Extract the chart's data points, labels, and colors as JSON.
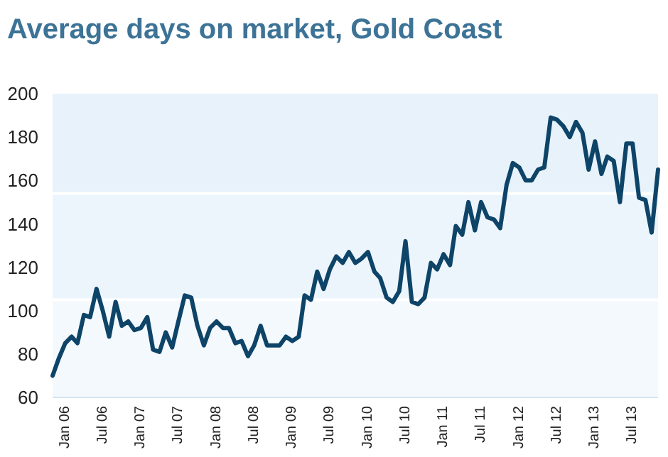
{
  "chart_data": {
    "type": "line",
    "title": "Average days on market, Gold Coast",
    "x": [
      "2005-11",
      "2005-12",
      "2006-01",
      "2006-02",
      "2006-03",
      "2006-04",
      "2006-05",
      "2006-06",
      "2006-07",
      "2006-08",
      "2006-09",
      "2006-10",
      "2006-11",
      "2006-12",
      "2007-01",
      "2007-02",
      "2007-03",
      "2007-04",
      "2007-05",
      "2007-06",
      "2007-07",
      "2007-08",
      "2007-09",
      "2007-10",
      "2007-11",
      "2007-12",
      "2008-01",
      "2008-02",
      "2008-03",
      "2008-04",
      "2008-05",
      "2008-06",
      "2008-07",
      "2008-08",
      "2008-09",
      "2008-10",
      "2008-11",
      "2008-12",
      "2009-01",
      "2009-02",
      "2009-03",
      "2009-04",
      "2009-05",
      "2009-06",
      "2009-07",
      "2009-08",
      "2009-09",
      "2009-10",
      "2009-11",
      "2009-12",
      "2010-01",
      "2010-02",
      "2010-03",
      "2010-04",
      "2010-05",
      "2010-06",
      "2010-07",
      "2010-08",
      "2010-09",
      "2010-10",
      "2010-11",
      "2010-12",
      "2011-01",
      "2011-02",
      "2011-03",
      "2011-04",
      "2011-05",
      "2011-06",
      "2011-07",
      "2011-08",
      "2011-09",
      "2011-10",
      "2011-11",
      "2011-12",
      "2012-01",
      "2012-02",
      "2012-03",
      "2012-04",
      "2012-05",
      "2012-06",
      "2012-07",
      "2012-08",
      "2012-09",
      "2012-10",
      "2012-11",
      "2012-12",
      "2013-01",
      "2013-02",
      "2013-03",
      "2013-04",
      "2013-05",
      "2013-06",
      "2013-07",
      "2013-08",
      "2013-09",
      "2013-10",
      "2013-11"
    ],
    "series": [
      {
        "color": "#0d4468",
        "values": [
          70,
          78,
          85,
          88,
          85,
          98,
          97,
          110,
          100,
          88,
          104,
          93,
          95,
          91,
          92,
          97,
          82,
          81,
          90,
          83,
          95,
          107,
          106,
          93,
          84,
          92,
          95,
          92,
          92,
          85,
          86,
          79,
          84,
          93,
          84,
          84,
          84,
          88,
          86,
          88,
          107,
          105,
          118,
          110,
          119,
          125,
          122,
          127,
          122,
          124,
          127,
          118,
          115,
          106,
          104,
          109,
          132,
          104,
          103,
          106,
          122,
          119,
          126,
          121,
          139,
          135,
          150,
          137,
          150,
          143,
          142,
          138,
          158,
          168,
          166,
          160,
          160,
          165,
          166,
          189,
          188,
          185,
          180,
          187,
          182,
          165,
          178,
          163,
          171,
          169,
          150,
          177,
          177,
          152,
          151,
          136,
          165
        ]
      }
    ],
    "xticks": [
      {
        "value": "2006-01",
        "label": "Jan 06"
      },
      {
        "value": "2006-07",
        "label": "Jul 06"
      },
      {
        "value": "2007-01",
        "label": "Jan 07"
      },
      {
        "value": "2007-07",
        "label": "Jul 07"
      },
      {
        "value": "2008-01",
        "label": "Jan 08"
      },
      {
        "value": "2008-07",
        "label": "Jul 08"
      },
      {
        "value": "2009-01",
        "label": "Jan 09"
      },
      {
        "value": "2009-07",
        "label": "Jul 09"
      },
      {
        "value": "2010-01",
        "label": "Jan 10"
      },
      {
        "value": "2010-07",
        "label": "Jul 10"
      },
      {
        "value": "2011-01",
        "label": "Jan 11"
      },
      {
        "value": "2011-07",
        "label": "Jul 11"
      },
      {
        "value": "2012-01",
        "label": "Jan 12"
      },
      {
        "value": "2012-07",
        "label": "Jul 12"
      },
      {
        "value": "2013-01",
        "label": "Jan 13"
      },
      {
        "value": "2013-07",
        "label": "Jul 13"
      }
    ],
    "ylim": [
      60,
      200
    ],
    "yticks": [
      60,
      80,
      100,
      120,
      140,
      160,
      180,
      200
    ],
    "bands": [
      {
        "axis": "y",
        "from": 60,
        "to": 105,
        "color": "#f4f9fe"
      },
      {
        "axis": "y",
        "from": 105,
        "to": 154,
        "color": "#edf5fc"
      },
      {
        "axis": "y",
        "from": 154,
        "to": 200,
        "color": "#e8f2fb"
      }
    ],
    "xlim": [
      "2005-11",
      "2013-11"
    ],
    "grid": false,
    "marker": "none",
    "line_style": "solid"
  }
}
